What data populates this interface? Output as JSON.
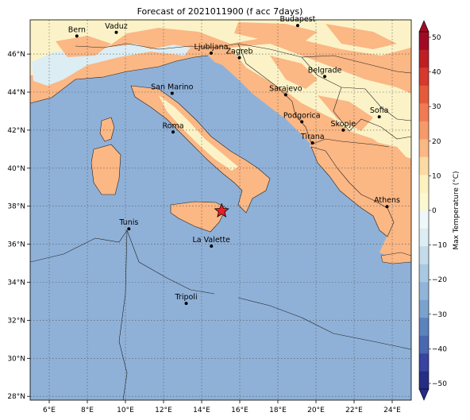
{
  "title": "Forecast of 2021011900 (f acc 7days)",
  "map": {
    "lon_range": [
      5,
      25
    ],
    "lat_range": [
      27.8,
      47.8
    ],
    "lon_ticks": [
      "6°E",
      "8°E",
      "10°E",
      "12°E",
      "14°E",
      "16°E",
      "18°E",
      "20°E",
      "22°E",
      "24°E"
    ],
    "lat_ticks": [
      "46°N",
      "44°N",
      "42°N",
      "40°N",
      "38°N",
      "36°N",
      "34°N",
      "32°N",
      "30°N",
      "28°N"
    ],
    "grid": true,
    "sea_color": "#8fb1d8"
  },
  "cities": [
    {
      "name": "Bern",
      "lon": 7.45,
      "lat": 46.95
    },
    {
      "name": "Vaduz",
      "lon": 9.52,
      "lat": 47.14
    },
    {
      "name": "Budapest",
      "lon": 19.04,
      "lat": 47.5
    },
    {
      "name": "Ljubljana",
      "lon": 14.5,
      "lat": 46.05
    },
    {
      "name": "Zagreb",
      "lon": 15.98,
      "lat": 45.81
    },
    {
      "name": "Belgrade",
      "lon": 20.46,
      "lat": 44.82
    },
    {
      "name": "San Marino",
      "lon": 12.45,
      "lat": 43.94
    },
    {
      "name": "Sarajevo",
      "lon": 18.41,
      "lat": 43.86
    },
    {
      "name": "Sofia",
      "lon": 23.32,
      "lat": 42.7
    },
    {
      "name": "Podgorica",
      "lon": 19.26,
      "lat": 42.44
    },
    {
      "name": "Skopje",
      "lon": 21.43,
      "lat": 42.0
    },
    {
      "name": "Roma",
      "lon": 12.5,
      "lat": 41.9
    },
    {
      "name": "Tirana",
      "lon": 19.82,
      "lat": 41.33
    },
    {
      "name": "Athens",
      "lon": 23.73,
      "lat": 37.98
    },
    {
      "name": "Tunis",
      "lon": 10.18,
      "lat": 36.81
    },
    {
      "name": "La Valette",
      "lon": 14.51,
      "lat": 35.9
    },
    {
      "name": "Tripoli",
      "lon": 13.19,
      "lat": 32.89
    }
  ],
  "marker": {
    "lon": 15.05,
    "lat": 37.75,
    "color": "#e8202a"
  },
  "colorbar": {
    "label": "Max Temperature (°C)",
    "ticks": [
      "50",
      "40",
      "30",
      "20",
      "10",
      "0",
      "−10",
      "−20",
      "−30",
      "−40",
      "−50"
    ],
    "levels": [
      -50,
      -45,
      -40,
      -35,
      -30,
      -25,
      -20,
      -15,
      -10,
      -5,
      0,
      5,
      10,
      15,
      20,
      25,
      30,
      35,
      40,
      45,
      50
    ],
    "colors": [
      "#252d85",
      "#3744a0",
      "#4a68b0",
      "#5b83bc",
      "#7aa2cd",
      "#92b4d8",
      "#a9c8e2",
      "#c3dbeb",
      "#dcedf3",
      "#eef7f9",
      "#fbf8d2",
      "#fdf1bf",
      "#fdd9a3",
      "#fbb784",
      "#f69a6a",
      "#f07b52",
      "#e45b3b",
      "#d53a2c",
      "#bd1f25",
      "#a00b23"
    ]
  }
}
